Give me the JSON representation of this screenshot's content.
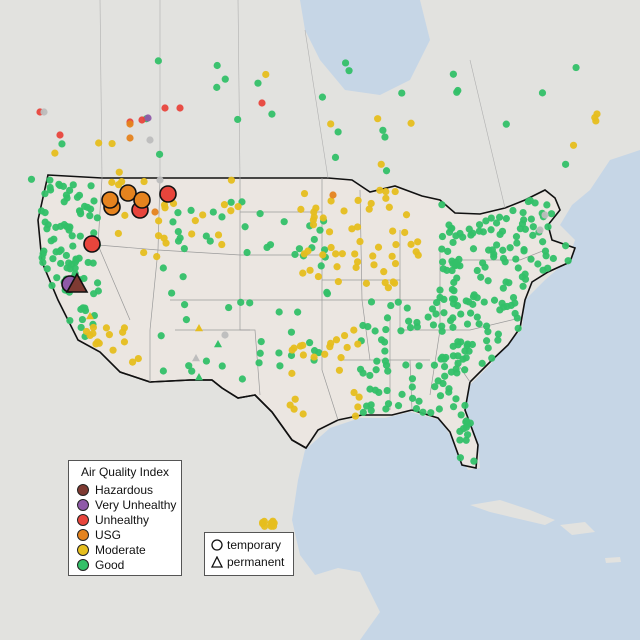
{
  "legend": {
    "title": "Air Quality Index",
    "categories": [
      {
        "label": "Hazardous",
        "color": "#7e3a32"
      },
      {
        "label": "Very Unhealthy",
        "color": "#8f5aa8"
      },
      {
        "label": "Unhealthy",
        "color": "#e8453c"
      },
      {
        "label": "USG",
        "color": "#e5831e"
      },
      {
        "label": "Moderate",
        "color": "#e6be1e"
      },
      {
        "label": "Good",
        "color": "#33c068"
      }
    ]
  },
  "site_legend": {
    "temporary_label": "temporary",
    "permanent_label": "permanent"
  },
  "colors": {
    "water": "#c6d6e6",
    "land_us": "#ebe6e1",
    "land_other": "#e2e2df",
    "no_data": "#bdbdbd"
  }
}
